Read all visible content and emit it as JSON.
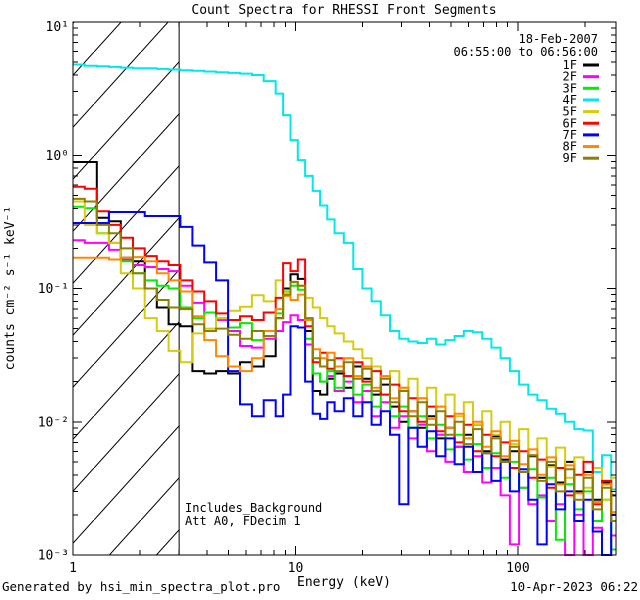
{
  "title": "Count Spectra for RHESSI Front Segments",
  "header_annotations": {
    "date": "18-Feb-2007",
    "time_range": "06:55:00 to 06:56:00"
  },
  "plot_annotations": {
    "line1": "Includes_Background",
    "line2": "Att A0, FDecim 1"
  },
  "footer": {
    "left": "Generated by hsi_min_spectra_plot.pro",
    "right": "10-Apr-2023 06:22"
  },
  "chart_data": {
    "type": "line",
    "subtype": "log-log step histogram spectra",
    "title": "Count Spectra for RHESSI Front Segments",
    "xlabel": "Energy (keV)",
    "ylabel": "counts cm⁻² s⁻¹ keV⁻¹",
    "xlim": [
      1,
      276
    ],
    "ylim": [
      0.001,
      10
    ],
    "grid": false,
    "legend_position": "upper-right-inside",
    "x_major_ticks": [
      1,
      10,
      100
    ],
    "x_major_tick_labels": [
      "1",
      "10",
      "100"
    ],
    "y_major_tick_values": [
      10,
      1,
      0.1,
      0.01,
      0.001
    ],
    "y_major_tick_labels": [
      "10¹",
      "10⁰",
      "10⁻¹",
      "10⁻²",
      "10⁻³"
    ],
    "hatched_region_kev": [
      1,
      3
    ],
    "bin_edges_kev": [
      1.0,
      1.13,
      1.28,
      1.45,
      1.64,
      1.86,
      2.1,
      2.38,
      2.69,
      3.04,
      3.44,
      3.89,
      4.4,
      4.98,
      5.63,
      6.37,
      7.2,
      8.15,
      8.8,
      9.5,
      10.25,
      11.05,
      11.95,
      12.9,
      13.9,
      15.0,
      16.5,
      18.2,
      20.0,
      22.0,
      24.2,
      26.6,
      29.3,
      32.2,
      35.4,
      39.0,
      42.9,
      47.2,
      51.9,
      57.1,
      62.8,
      69.1,
      76.0,
      83.6,
      92.0,
      101.2,
      111.3,
      122.4,
      134.7,
      148.2,
      163.0,
      179.3,
      197.2,
      217.0,
      238.7,
      262.6,
      276.0
    ],
    "series": [
      {
        "name": "1F",
        "color": "#000000",
        "values": [
          0.89,
          0.89,
          0.34,
          0.32,
          0.17,
          0.16,
          0.1,
          0.072,
          0.054,
          0.052,
          0.024,
          0.023,
          0.024,
          0.023,
          0.028,
          0.026,
          0.031,
          0.06,
          0.1,
          0.128,
          0.118,
          0.048,
          0.017,
          0.016,
          0.021,
          0.023,
          0.018,
          0.026,
          0.021,
          0.016,
          0.019,
          0.013,
          0.01,
          0.012,
          0.009,
          0.011,
          0.0075,
          0.009,
          0.0065,
          0.008,
          0.0095,
          0.006,
          0.0078,
          0.0052,
          0.006,
          0.0042,
          0.0055,
          0.0038,
          0.0047,
          0.0035,
          0.005,
          0.003,
          0.0042,
          0.0026,
          0.0035,
          0.0028
        ]
      },
      {
        "name": "2F",
        "color": "#FF00FF",
        "values": [
          0.23,
          0.22,
          0.22,
          0.195,
          0.165,
          0.15,
          0.145,
          0.14,
          0.135,
          0.105,
          0.078,
          0.066,
          0.058,
          0.048,
          0.037,
          0.036,
          0.042,
          0.048,
          0.056,
          0.063,
          0.058,
          0.038,
          0.023,
          0.02,
          0.022,
          0.017,
          0.02,
          0.014,
          0.017,
          0.011,
          0.014,
          0.009,
          0.011,
          0.0075,
          0.0095,
          0.006,
          0.008,
          0.005,
          0.0065,
          0.0042,
          0.0055,
          0.0035,
          0.0045,
          0.0028,
          0.0012,
          0.0032,
          0.0024,
          0.0028,
          0.0018,
          0.0024,
          0.001,
          0.002,
          0.0009,
          0.0016,
          0.0008,
          0.0014
        ]
      },
      {
        "name": "3F",
        "color": "#00EE00",
        "values": [
          0.41,
          0.4,
          0.26,
          0.22,
          0.16,
          0.13,
          0.115,
          0.105,
          0.1,
          0.072,
          0.06,
          0.066,
          0.06,
          0.051,
          0.055,
          0.041,
          0.048,
          0.065,
          0.095,
          0.105,
          0.098,
          0.042,
          0.023,
          0.02,
          0.024,
          0.018,
          0.022,
          0.016,
          0.019,
          0.013,
          0.016,
          0.011,
          0.013,
          0.009,
          0.011,
          0.0075,
          0.0095,
          0.0062,
          0.008,
          0.0052,
          0.0068,
          0.0045,
          0.0058,
          0.0038,
          0.005,
          0.0032,
          0.0044,
          0.0027,
          0.0038,
          0.0013,
          0.0034,
          0.0022,
          0.003,
          0.0018,
          0.0026,
          0.0011
        ]
      },
      {
        "name": "4F",
        "color": "#00E8E8",
        "values": [
          4.8,
          4.7,
          4.65,
          4.6,
          4.55,
          4.5,
          4.5,
          4.45,
          4.4,
          4.35,
          4.3,
          4.25,
          4.2,
          4.15,
          4.1,
          4.0,
          3.6,
          2.9,
          2.0,
          1.3,
          0.92,
          0.7,
          0.54,
          0.42,
          0.33,
          0.26,
          0.22,
          0.14,
          0.1,
          0.08,
          0.063,
          0.048,
          0.042,
          0.04,
          0.039,
          0.042,
          0.038,
          0.041,
          0.044,
          0.048,
          0.047,
          0.042,
          0.036,
          0.03,
          0.024,
          0.019,
          0.016,
          0.0145,
          0.0125,
          0.0115,
          0.01,
          0.0088,
          0.0086,
          0.0042,
          0.0056,
          0.0031
        ]
      },
      {
        "name": "5F",
        "color": "#D4CC11",
        "values": [
          0.45,
          0.3,
          0.26,
          0.22,
          0.13,
          0.1,
          0.06,
          0.048,
          0.034,
          0.028,
          0.046,
          0.05,
          0.06,
          0.068,
          0.073,
          0.089,
          0.08,
          0.115,
          0.094,
          0.111,
          0.105,
          0.085,
          0.072,
          0.06,
          0.052,
          0.046,
          0.04,
          0.035,
          0.03,
          0.026,
          0.022,
          0.024,
          0.018,
          0.021,
          0.015,
          0.018,
          0.013,
          0.016,
          0.011,
          0.014,
          0.0095,
          0.012,
          0.008,
          0.01,
          0.0068,
          0.0088,
          0.0056,
          0.0075,
          0.0046,
          0.0064,
          0.0038,
          0.0054,
          0.0032,
          0.0045,
          0.0026,
          0.0038
        ]
      },
      {
        "name": "6F",
        "color": "#FF0000",
        "values": [
          0.58,
          0.56,
          0.38,
          0.3,
          0.24,
          0.2,
          0.175,
          0.16,
          0.15,
          0.115,
          0.095,
          0.08,
          0.065,
          0.058,
          0.062,
          0.058,
          0.066,
          0.085,
          0.155,
          0.135,
          0.165,
          0.052,
          0.028,
          0.033,
          0.025,
          0.03,
          0.022,
          0.028,
          0.02,
          0.024,
          0.016,
          0.019,
          0.012,
          0.015,
          0.01,
          0.013,
          0.0085,
          0.011,
          0.007,
          0.0095,
          0.006,
          0.008,
          0.0055,
          0.007,
          0.0045,
          0.006,
          0.0038,
          0.0052,
          0.0032,
          0.0045,
          0.0028,
          0.004,
          0.005,
          0.0024,
          0.0036,
          0.002
        ]
      },
      {
        "name": "7F",
        "color": "#0000FF",
        "values": [
          0.31,
          0.31,
          0.31,
          0.375,
          0.375,
          0.375,
          0.35,
          0.35,
          0.35,
          0.29,
          0.21,
          0.157,
          0.115,
          0.024,
          0.0135,
          0.011,
          0.0145,
          0.011,
          0.016,
          0.052,
          0.051,
          0.02,
          0.0115,
          0.0105,
          0.014,
          0.012,
          0.015,
          0.011,
          0.014,
          0.0095,
          0.012,
          0.008,
          0.0024,
          0.009,
          0.0065,
          0.0085,
          0.0055,
          0.0075,
          0.0048,
          0.0065,
          0.0042,
          0.0058,
          0.0036,
          0.005,
          0.003,
          0.0044,
          0.0026,
          0.0012,
          0.0034,
          0.0022,
          0.003,
          0.0018,
          0.0026,
          0.0015,
          0.0009,
          0.002
        ]
      },
      {
        "name": "8F",
        "color": "#FF8800",
        "values": [
          0.17,
          0.17,
          0.17,
          0.165,
          0.17,
          0.172,
          0.16,
          0.13,
          0.115,
          0.095,
          0.062,
          0.041,
          0.031,
          0.026,
          0.024,
          0.03,
          0.048,
          0.07,
          0.088,
          0.082,
          0.09,
          0.058,
          0.035,
          0.03,
          0.033,
          0.026,
          0.03,
          0.022,
          0.026,
          0.018,
          0.022,
          0.015,
          0.018,
          0.012,
          0.015,
          0.0105,
          0.013,
          0.009,
          0.0115,
          0.0075,
          0.01,
          0.0065,
          0.0085,
          0.0055,
          0.0072,
          0.0048,
          0.0062,
          0.004,
          0.0054,
          0.0034,
          0.0047,
          0.0029,
          0.004,
          0.0025,
          0.0034,
          0.0021
        ]
      },
      {
        "name": "9F",
        "color": "#8B8000",
        "values": [
          0.47,
          0.45,
          0.3,
          0.26,
          0.2,
          0.13,
          0.1,
          0.082,
          0.072,
          0.07,
          0.054,
          0.048,
          0.05,
          0.045,
          0.042,
          0.048,
          0.044,
          0.06,
          0.09,
          0.112,
          0.105,
          0.06,
          0.03,
          0.026,
          0.029,
          0.024,
          0.028,
          0.021,
          0.025,
          0.017,
          0.021,
          0.014,
          0.017,
          0.011,
          0.014,
          0.0095,
          0.012,
          0.008,
          0.01,
          0.0068,
          0.0088,
          0.0058,
          0.0075,
          0.005,
          0.0065,
          0.0042,
          0.0056,
          0.0036,
          0.005,
          0.003,
          0.0044,
          0.0026,
          0.0038,
          0.0022,
          0.0032,
          0.0018
        ]
      }
    ]
  }
}
